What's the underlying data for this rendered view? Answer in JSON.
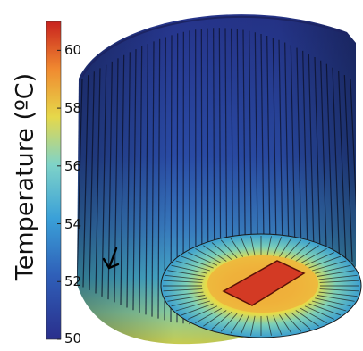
{
  "figure": {
    "colorbar": {
      "title": "Temperature (ºC)",
      "min": 50,
      "max": 61,
      "ticks": [
        "50",
        "52",
        "54",
        "56",
        "58",
        "60"
      ],
      "colors": [
        "#2a2f8c",
        "#2f5fb8",
        "#3aa0d8",
        "#7fd3c8",
        "#e6d84a",
        "#f08a30",
        "#c8221e"
      ]
    },
    "object": {
      "description_icon": "finned-cylindrical-heat-sink",
      "hot_plate_color": "#d33a24",
      "cold_color": "#253a8c"
    },
    "annotation": {
      "arrow_icon": "down-left-arrow-icon"
    }
  }
}
